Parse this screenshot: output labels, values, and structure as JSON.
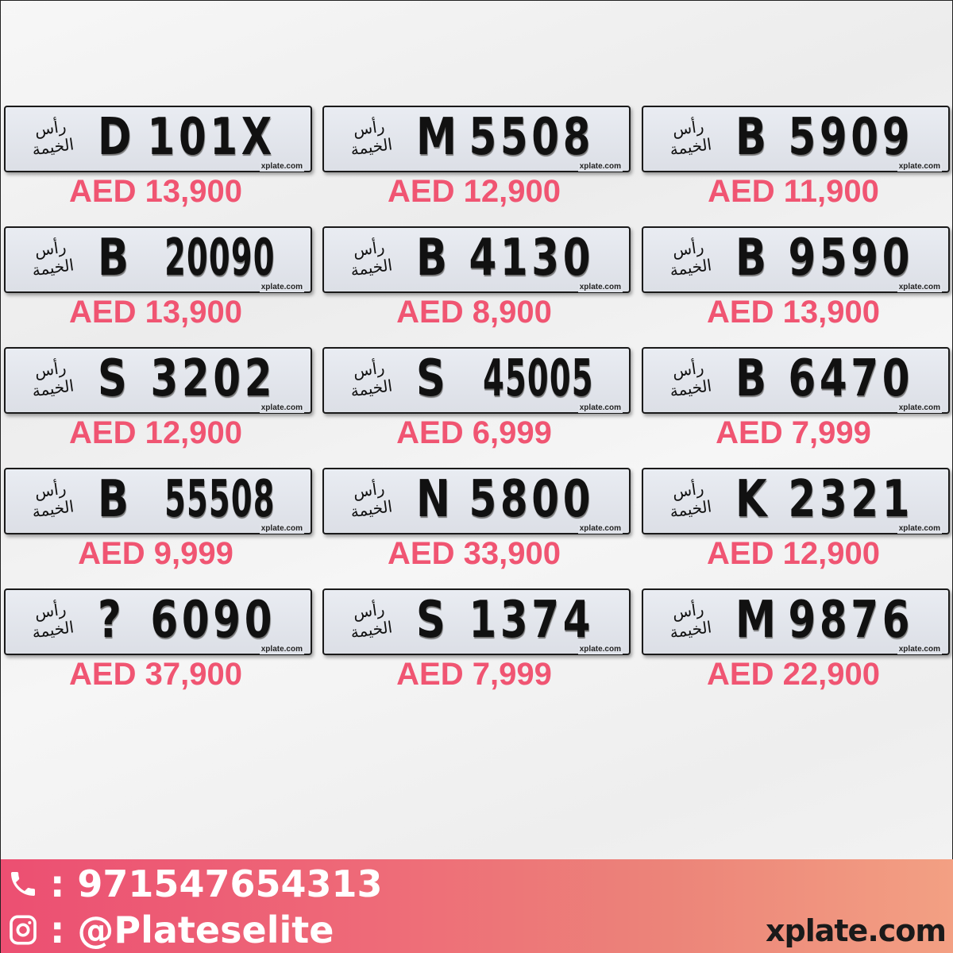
{
  "emirate_text": "رأس الخيمة",
  "plate_watermark": "xplate.com",
  "price_color": "#f05572",
  "plates": [
    {
      "code": "D",
      "number": "101X",
      "price": "AED 13,900"
    },
    {
      "code": "M",
      "number": "5508",
      "price": "AED 12,900"
    },
    {
      "code": "B",
      "number": "5909",
      "price": "AED 11,900"
    },
    {
      "code": "B",
      "number": "20090",
      "price": "AED 13,900"
    },
    {
      "code": "B",
      "number": "4130",
      "price": "AED 8,900"
    },
    {
      "code": "B",
      "number": "9590",
      "price": "AED 13,900"
    },
    {
      "code": "S",
      "number": "3202",
      "price": "AED 12,900"
    },
    {
      "code": "S",
      "number": "45005",
      "price": "AED 6,999"
    },
    {
      "code": "B",
      "number": "6470",
      "price": "AED 7,999"
    },
    {
      "code": "B",
      "number": "55508",
      "price": "AED 9,999"
    },
    {
      "code": "N",
      "number": "5800",
      "price": "AED 33,900"
    },
    {
      "code": "K",
      "number": "2321",
      "price": "AED 12,900"
    },
    {
      "code": "?",
      "number": "6090",
      "price": "AED 37,900"
    },
    {
      "code": "S",
      "number": "1374",
      "price": "AED 7,999"
    },
    {
      "code": "M",
      "number": "9876",
      "price": "AED 22,900"
    }
  ],
  "footer": {
    "phone_icon": "phone-icon",
    "phone": ": 971547654313",
    "instagram_icon": "instagram-icon",
    "instagram": ": @Plateselite",
    "site": "xplate.com"
  }
}
